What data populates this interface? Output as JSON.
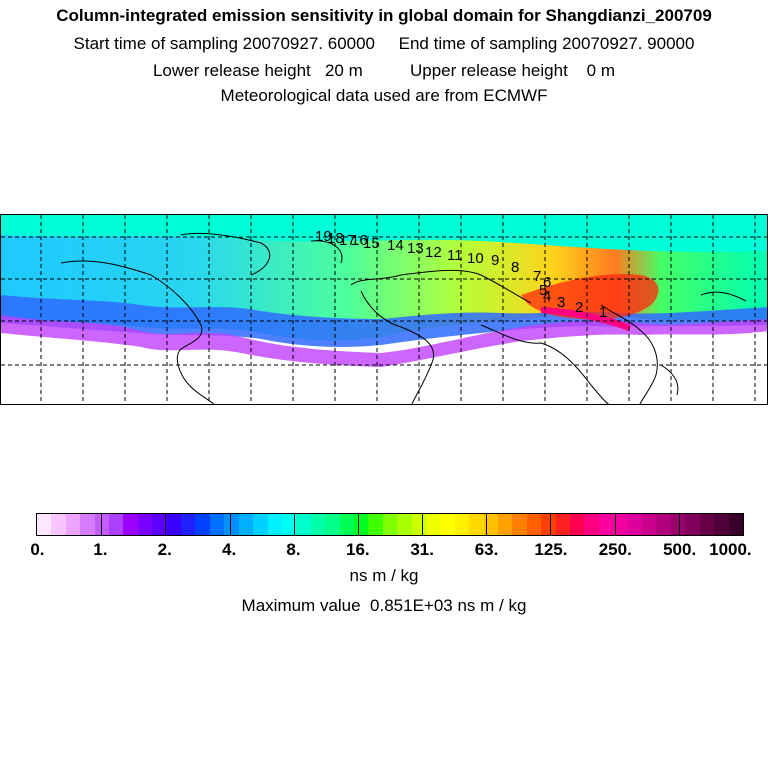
{
  "header": {
    "title": "Column-integrated emission sensitivity in global domain for Shangdianzi_200709",
    "sampling_line": "Start time of sampling 20070927. 60000     End time of sampling 20070927. 90000",
    "release_line": "Lower release height   20 m          Upper release height    0 m",
    "met_line": "Meteorological data used are from ECMWF"
  },
  "map": {
    "trajectory_labels": [
      "1",
      "2",
      "3",
      "4",
      "5",
      "6",
      "7",
      "8",
      "9",
      "10",
      "11",
      "12",
      "13",
      "14",
      "15",
      "16",
      "17",
      "18",
      "19"
    ],
    "colors": {
      "land_outline": "#000000",
      "grid": "#000000",
      "background": "#ffffff"
    }
  },
  "colorbar": {
    "colors": [
      "#fde6ff",
      "#f7c6ff",
      "#eea4ff",
      "#d67cff",
      "#c45cff",
      "#b040ff",
      "#9c00ff",
      "#7a00ff",
      "#5c00ff",
      "#3a00ff",
      "#2020ff",
      "#0040ff",
      "#0070ff",
      "#0090ff",
      "#00b0ff",
      "#00d0ff",
      "#00f0ff",
      "#00ffee",
      "#00ffcc",
      "#00ffaa",
      "#00ff88",
      "#00ff55",
      "#00ff20",
      "#40ff00",
      "#80ff00",
      "#a8ff00",
      "#ccff00",
      "#eeff00",
      "#ffff00",
      "#fff000",
      "#ffd800",
      "#ffc000",
      "#ffa000",
      "#ff8000",
      "#ff6000",
      "#ff4000",
      "#ff2020",
      "#ff0050",
      "#ff0080",
      "#ff00a0",
      "#f000a0",
      "#dd009c",
      "#c8008c",
      "#b0007c",
      "#98006c",
      "#80005c",
      "#680048",
      "#500038",
      "#380028"
    ],
    "tick_labels": [
      "0.",
      "1.",
      "2.",
      "4.",
      "8.",
      "16.",
      "31.",
      "63.",
      "125.",
      "250.",
      "500.",
      "1000."
    ],
    "unit_label": "ns m / kg",
    "max_value_label": "Maximum value  0.851E+03 ns m / kg"
  }
}
